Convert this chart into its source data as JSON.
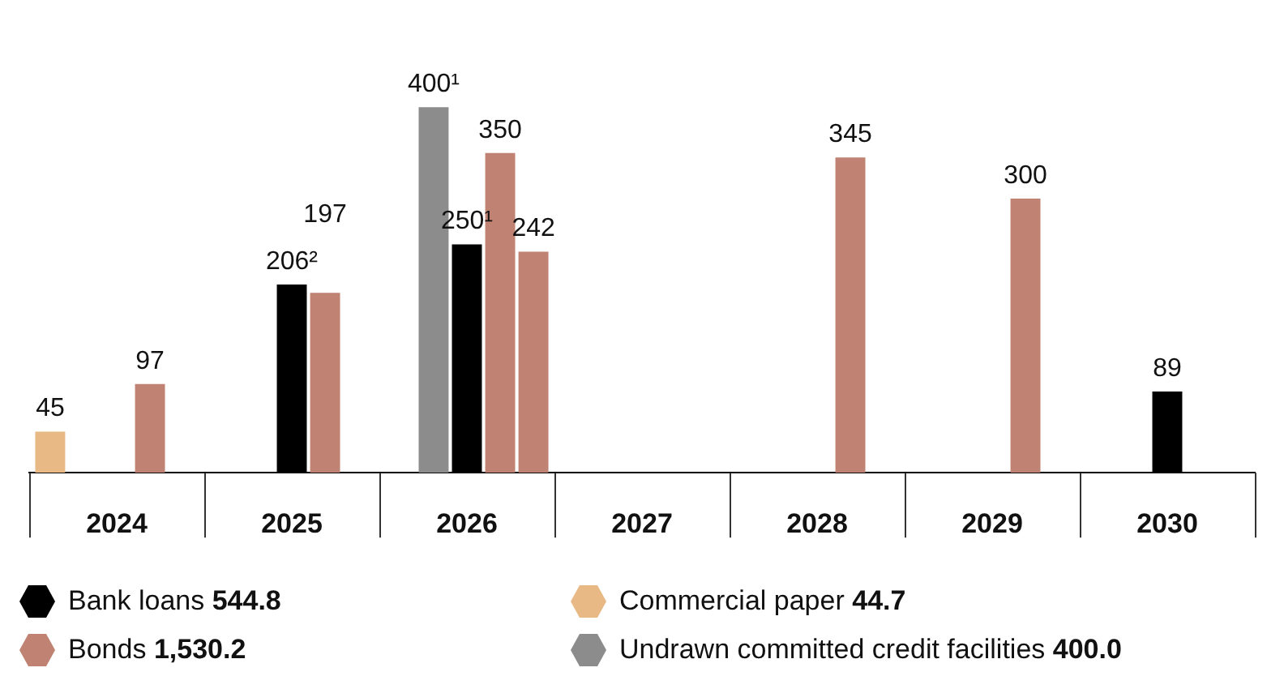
{
  "chart_data": {
    "type": "bar",
    "categories": [
      "2024",
      "2025",
      "2026",
      "2027",
      "2028",
      "2029",
      "2030"
    ],
    "series": [
      {
        "name": "Commercial paper 44.7",
        "color": "#e8b985",
        "values": [
          45,
          null,
          null,
          null,
          null,
          null,
          null
        ],
        "value_labels": [
          "45",
          null,
          null,
          null,
          null,
          null,
          null
        ]
      },
      {
        "name": "Undrawn committed credit facilities 400.0",
        "color": "#8c8c8c",
        "values": [
          null,
          null,
          400,
          null,
          null,
          null,
          null
        ],
        "value_labels": [
          null,
          null,
          "400¹",
          null,
          null,
          null,
          null
        ]
      },
      {
        "name": "Bank loans 544.8",
        "color": "#000000",
        "values": [
          null,
          206,
          250,
          null,
          null,
          null,
          89
        ],
        "value_labels": [
          null,
          "206²",
          "250¹",
          null,
          null,
          null,
          "89"
        ]
      },
      {
        "name": "Bonds 1,530.2",
        "color": "#c08272",
        "values": [
          97,
          197,
          350,
          null,
          345,
          300,
          null
        ],
        "value_labels": [
          "97",
          "197",
          "350",
          null,
          "345",
          "300",
          null
        ]
      },
      {
        "color": "#c08272",
        "values": [
          null,
          null,
          242,
          null,
          null,
          null,
          null
        ],
        "value_labels": [
          null,
          null,
          "242",
          null,
          null,
          null,
          null
        ]
      }
    ],
    "legend": "bottom"
  }
}
